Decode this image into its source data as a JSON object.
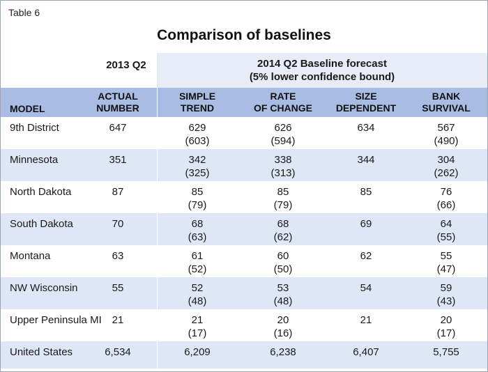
{
  "table_label": "Table 6",
  "title": "Comparison of baselines",
  "header": {
    "period_2013": "2013 Q2",
    "forecast_line1": "2014 Q2 Baseline forecast",
    "forecast_line2": "(5% lower confidence bound)"
  },
  "columns": {
    "model": "MODEL",
    "actual_1": "ACTUAL",
    "actual_2": "NUMBER",
    "simple_1": "SIMPLE",
    "simple_2": "TREND",
    "rate_1": "RATE",
    "rate_2": "OF CHANGE",
    "size_1": "SIZE",
    "size_2": "DEPENDENT",
    "bank_1": "BANK",
    "bank_2": "SURVIVAL"
  },
  "rows": [
    {
      "name": "9th District",
      "actual": "647",
      "simple": "629",
      "simple_lb": "(603)",
      "rate": "626",
      "rate_lb": "(594)",
      "size": "634",
      "bank": "567",
      "bank_lb": "(490)"
    },
    {
      "name": "Minnesota",
      "actual": "351",
      "simple": "342",
      "simple_lb": "(325)",
      "rate": "338",
      "rate_lb": "(313)",
      "size": "344",
      "bank": "304",
      "bank_lb": "(262)"
    },
    {
      "name": "North Dakota",
      "actual": "87",
      "simple": "85",
      "simple_lb": "(79)",
      "rate": "85",
      "rate_lb": "(79)",
      "size": "85",
      "bank": "76",
      "bank_lb": "(66)"
    },
    {
      "name": "South Dakota",
      "actual": "70",
      "simple": "68",
      "simple_lb": "(63)",
      "rate": "68",
      "rate_lb": "(62)",
      "size": "69",
      "bank": "64",
      "bank_lb": "(55)"
    },
    {
      "name": "Montana",
      "actual": "63",
      "simple": "61",
      "simple_lb": "(52)",
      "rate": "60",
      "rate_lb": "(50)",
      "size": "62",
      "bank": "55",
      "bank_lb": "(47)"
    },
    {
      "name": "NW Wisconsin",
      "actual": "55",
      "simple": "52",
      "simple_lb": "(48)",
      "rate": "53",
      "rate_lb": "(48)",
      "size": "54",
      "bank": "59",
      "bank_lb": "(43)"
    },
    {
      "name": "Upper Peninsula MI",
      "actual": "21",
      "simple": "21",
      "simple_lb": "(17)",
      "rate": "20",
      "rate_lb": "(16)",
      "size": "21",
      "bank": "20",
      "bank_lb": "(17)"
    },
    {
      "name": "United States",
      "actual": "6,534",
      "simple": "6,209",
      "simple_lb": "",
      "rate": "6,238",
      "rate_lb": "",
      "size": "6,407",
      "bank": "5,755",
      "bank_lb": ""
    }
  ],
  "colors": {
    "header_band": "#a9bde4",
    "forecast_band": "#e8ecf7",
    "alt_row": "#dfe6f5"
  }
}
